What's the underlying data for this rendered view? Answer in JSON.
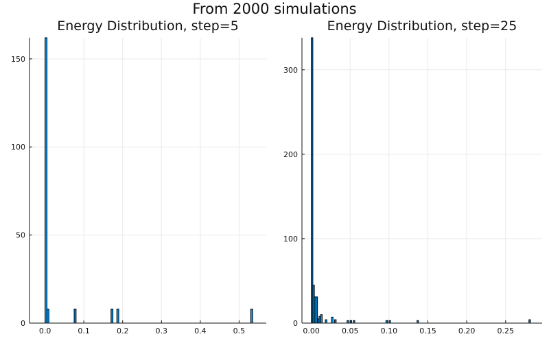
{
  "suptitle": "From 2000 simulations",
  "chart_data": [
    {
      "type": "bar",
      "title": "Energy Distribution, step=5",
      "xlabel": "",
      "ylabel": "",
      "xlim": [
        -0.04,
        0.57
      ],
      "ylim": [
        0,
        162
      ],
      "xticks": [
        0.0,
        0.1,
        0.2,
        0.3,
        0.4,
        0.5
      ],
      "xtick_labels": [
        "0.0",
        "0.1",
        "0.2",
        "0.3",
        "0.4",
        "0.5"
      ],
      "yticks": [
        0,
        50,
        100,
        150
      ],
      "ytick_labels": [
        "0",
        "50",
        "100",
        "150"
      ],
      "grid": true,
      "legend": "none",
      "bin_width": 0.005,
      "bins": [
        {
          "x": 0.0,
          "value": 162
        },
        {
          "x": 0.005,
          "value": 8
        },
        {
          "x": 0.075,
          "value": 8
        },
        {
          "x": 0.17,
          "value": 8
        },
        {
          "x": 0.185,
          "value": 8
        },
        {
          "x": 0.53,
          "value": 8
        }
      ]
    },
    {
      "type": "bar",
      "title": "Energy Distribution, step=25",
      "xlabel": "",
      "ylabel": "",
      "xlim": [
        -0.012,
        0.297
      ],
      "ylim": [
        0,
        338
      ],
      "xticks": [
        0.0,
        0.05,
        0.1,
        0.15,
        0.2,
        0.25
      ],
      "xtick_labels": [
        "0.00",
        "0.05",
        "0.10",
        "0.15",
        "0.20",
        "0.25"
      ],
      "yticks": [
        0,
        100,
        200,
        300
      ],
      "ytick_labels": [
        "0",
        "100",
        "200",
        "300"
      ],
      "grid": true,
      "legend": "none",
      "bin_width": 0.002,
      "bins": [
        {
          "x": 0.0,
          "value": 338
        },
        {
          "x": 0.002,
          "value": 45
        },
        {
          "x": 0.004,
          "value": 31
        },
        {
          "x": 0.006,
          "value": 31
        },
        {
          "x": 0.008,
          "value": 5
        },
        {
          "x": 0.01,
          "value": 8
        },
        {
          "x": 0.012,
          "value": 10
        },
        {
          "x": 0.018,
          "value": 4
        },
        {
          "x": 0.026,
          "value": 7
        },
        {
          "x": 0.03,
          "value": 4
        },
        {
          "x": 0.046,
          "value": 3
        },
        {
          "x": 0.05,
          "value": 3
        },
        {
          "x": 0.054,
          "value": 3
        },
        {
          "x": 0.096,
          "value": 3
        },
        {
          "x": 0.1,
          "value": 3
        },
        {
          "x": 0.136,
          "value": 3
        },
        {
          "x": 0.28,
          "value": 4
        }
      ]
    }
  ]
}
